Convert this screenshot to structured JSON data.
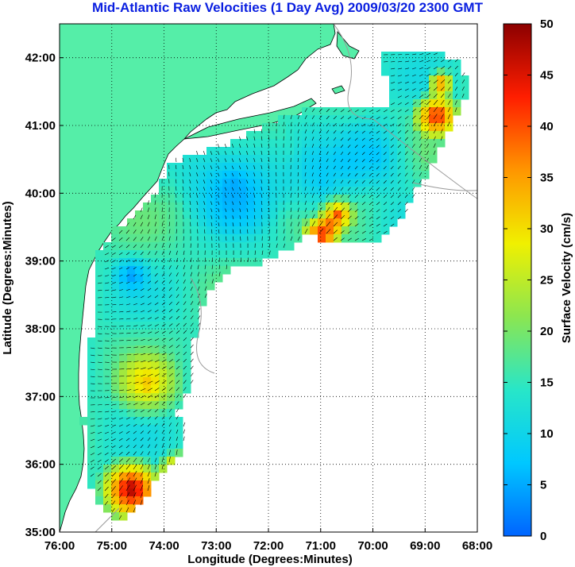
{
  "title": "Mid-Atlantic Raw Velocities (1 Day Avg) 2009/03/20 2300 GMT",
  "map": {
    "x_ticks": [
      "76:00",
      "75:00",
      "74:00",
      "73:00",
      "72:00",
      "71:00",
      "70:00",
      "69:00",
      "68:00"
    ],
    "y_ticks": [
      "35:00",
      "36:00",
      "37:00",
      "38:00",
      "39:00",
      "40:00",
      "41:00",
      "42:00"
    ],
    "xlabel": "Longitude (Degrees:Minutes)",
    "ylabel": "Latitude (Degrees:Minutes)",
    "lon_range": [
      -76,
      -68
    ],
    "lat_range": [
      35,
      42.5
    ],
    "land_color": "#55eea8",
    "ocean_color": "#ffffff",
    "grid_style": "dotted"
  },
  "colorbar": {
    "label": "Surface Velocity (cm/s)",
    "min": 0,
    "max": 50,
    "ticks": [
      "0",
      "5",
      "10",
      "15",
      "20",
      "25",
      "30",
      "35",
      "40",
      "45",
      "50"
    ],
    "colors": [
      "#0064ff",
      "#00c8ff",
      "#28e6c8",
      "#8ce650",
      "#f0f000",
      "#ff9600",
      "#ff1e00",
      "#8c0000"
    ]
  }
}
